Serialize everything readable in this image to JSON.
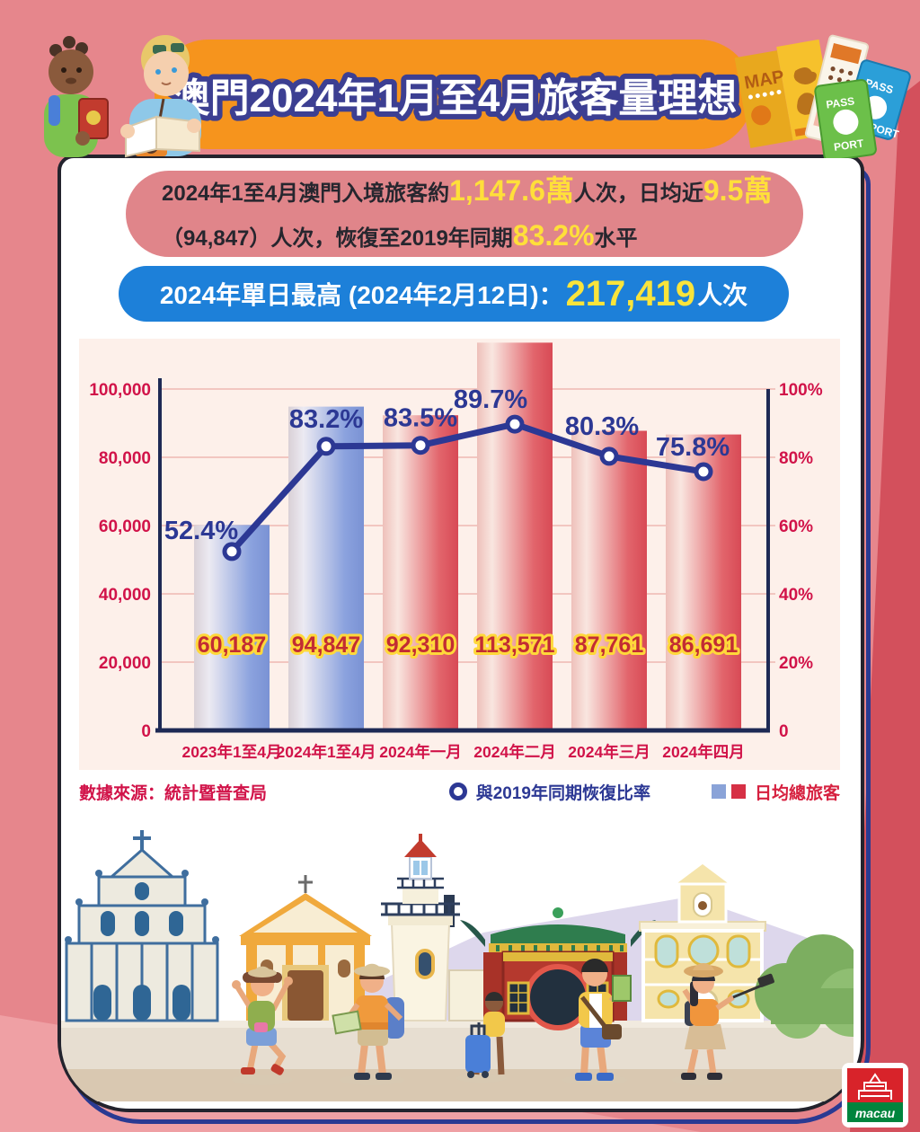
{
  "page": {
    "background": "#e6868c",
    "accent_red": "#d3505c",
    "accent_light_pink": "#efa0a4"
  },
  "header": {
    "title": "澳門2024年1月至4月旅客量理想",
    "banner_color": "#f6941d"
  },
  "summary": {
    "s1": "2024年1至4月澳門入境旅客約",
    "h1": "1,147.6萬",
    "s2": "人次，日均近",
    "h2": "9.5萬",
    "s3": "（94,847）人次，恢復至2019年同期",
    "h3": "83.2%",
    "s4": "水平"
  },
  "peak": {
    "p1": "2024年單日最高 (2024年2月12日)：",
    "hl": "217,419",
    "p2": "人次"
  },
  "chart_data": {
    "type": "combo bar+line",
    "title": "",
    "categories": [
      "2023年1至4月",
      "2024年1至4月",
      "2024年一月",
      "2024年二月",
      "2024年三月",
      "2024年四月"
    ],
    "series": [
      {
        "name": "日均總旅客",
        "type": "bar",
        "values": [
          60187,
          94847,
          92310,
          113571,
          87761,
          86691
        ],
        "value_labels": [
          "60,187",
          "94,847",
          "92,310",
          "113,571",
          "87,761",
          "86,691"
        ],
        "bar_palette": [
          "blue",
          "blue",
          "red",
          "red",
          "red",
          "red"
        ]
      },
      {
        "name": "與2019年同期恢復比率",
        "type": "line",
        "values": [
          52.4,
          83.2,
          83.5,
          89.7,
          80.3,
          75.8
        ],
        "value_labels": [
          "52.4%",
          "83.2%",
          "83.5%",
          "89.7%",
          "80.3%",
          "75.8%"
        ]
      }
    ],
    "left_axis": {
      "ticks": [
        "100,000",
        "80,000",
        "60,000",
        "40,000",
        "20,000",
        "0"
      ],
      "min": 0,
      "max": 100000
    },
    "right_axis": {
      "ticks": [
        "100%",
        "80%",
        "60%",
        "40%",
        "20%",
        "0"
      ],
      "min": 0,
      "max": 100
    },
    "grid": true,
    "legend_position": "bottom-right",
    "colors": {
      "bar_blue": "#7a92d4",
      "bar_red": "#d84a55",
      "line": "#2c3894",
      "axis": "#1e2a55",
      "tick_text": "#d11349",
      "value_label": "#c22c33",
      "value_label_outline": "#ffd83a",
      "gridline": "#f2c6c0",
      "panel_bg": "#fdf0ea"
    }
  },
  "source": {
    "text": "數據來源：統計暨普查局"
  },
  "legend": {
    "line_label": "與2019年同期恢復比率",
    "bar_label": "日均總旅客"
  },
  "icons": {
    "legend_line_marker": "ring-circle",
    "legend_bar_markers": [
      "blue-square",
      "red-square"
    ],
    "top_left": "tourists-illustration",
    "top_right": "map-ticket-passports-illustration",
    "bottom": "macau-landmarks-tourists-illustration"
  },
  "footer": {
    "logo_text": "macau"
  }
}
